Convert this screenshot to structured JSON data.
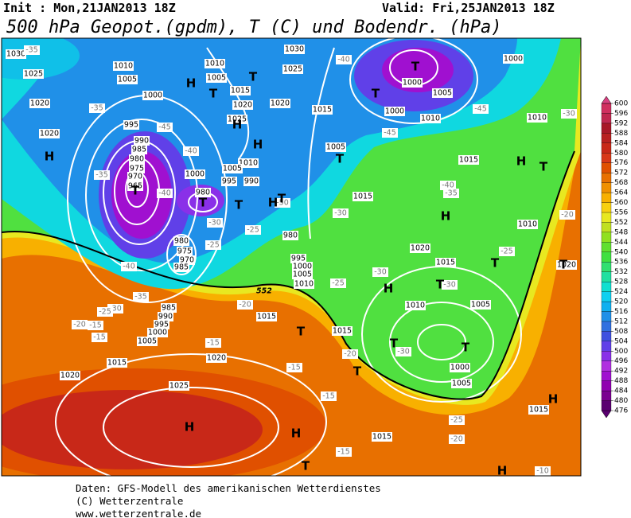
{
  "header": {
    "init": "Init : Mon,21JAN2013 18Z",
    "valid": "Valid: Fri,25JAN2013 18Z",
    "title": "500 hPa Geopot.(gpdm), T (C) und Bodendr. (hPa)"
  },
  "colorbar": {
    "levels": [
      476,
      480,
      484,
      488,
      492,
      496,
      500,
      504,
      508,
      512,
      516,
      520,
      524,
      528,
      532,
      536,
      540,
      544,
      548,
      552,
      556,
      560,
      564,
      568,
      572,
      576,
      580,
      584,
      588,
      592,
      596,
      600
    ],
    "colors": [
      "#5a0070",
      "#7a0090",
      "#9000b0",
      "#a010d0",
      "#b030e0",
      "#8a30e8",
      "#6040e8",
      "#4050e0",
      "#3070e0",
      "#2090e8",
      "#10b0f0",
      "#10d0f0",
      "#10e0d0",
      "#20e0a0",
      "#30e070",
      "#40e040",
      "#60e030",
      "#90e020",
      "#c0e020",
      "#e8e820",
      "#f8d010",
      "#f8b000",
      "#f09000",
      "#e87000",
      "#e05000",
      "#d83818",
      "#c82818",
      "#b82020",
      "#a81828",
      "#c02850",
      "#d03060",
      "#d84080"
    ]
  },
  "map": {
    "contour_label": "552",
    "isobar_labels": [
      "1030",
      "1025",
      "1020",
      "1020",
      "1010",
      "1005",
      "1000",
      "995",
      "990",
      "985",
      "980",
      "975",
      "970",
      "965",
      "1010",
      "1005",
      "1015",
      "1020",
      "1025",
      "1030",
      "1025",
      "1020",
      "1015",
      "1005",
      "1010",
      "1005",
      "1000",
      "995",
      "990",
      "980",
      "980",
      "975",
      "970",
      "985",
      "980",
      "995",
      "1000",
      "1005",
      "1010",
      "1015",
      "1015",
      "985",
      "990",
      "995",
      "1000",
      "1005",
      "1015",
      "1020",
      "1025",
      "1020",
      "1015",
      "1000",
      "1005",
      "1000",
      "1010",
      "1015",
      "1015",
      "1020",
      "1015",
      "1010",
      "1005",
      "1000",
      "1005",
      "1010",
      "1010",
      "1000",
      "1020",
      "1015"
    ],
    "temperature_labels": [
      "-35",
      "-35",
      "-35",
      "-40",
      "-45",
      "-40",
      "-40",
      "-35",
      "-30",
      "-25",
      "-20",
      "-15",
      "-15",
      "-30",
      "-25",
      "-25",
      "-50",
      "-25",
      "-20",
      "-15",
      "-15",
      "-20",
      "-15",
      "-15",
      "-25",
      "-20",
      "-30",
      "-30",
      "-30",
      "-30",
      "-25",
      "-40",
      "-35",
      "-45",
      "-45",
      "-40",
      "-30",
      "-20",
      "-10"
    ],
    "centers": [
      "H",
      "H",
      "T",
      "T",
      "H",
      "H",
      "T",
      "T",
      "T",
      "T",
      "H",
      "T",
      "T",
      "T",
      "H",
      "T",
      "H",
      "T",
      "T",
      "H",
      "T",
      "T",
      "T",
      "T",
      "H",
      "H",
      "T",
      "H",
      "H",
      "T"
    ]
  },
  "footer": [
    "Daten: GFS-Modell des amerikanischen Wetterdienstes",
    "(C) Wetterzentrale",
    "www.wetterzentrale.de"
  ]
}
